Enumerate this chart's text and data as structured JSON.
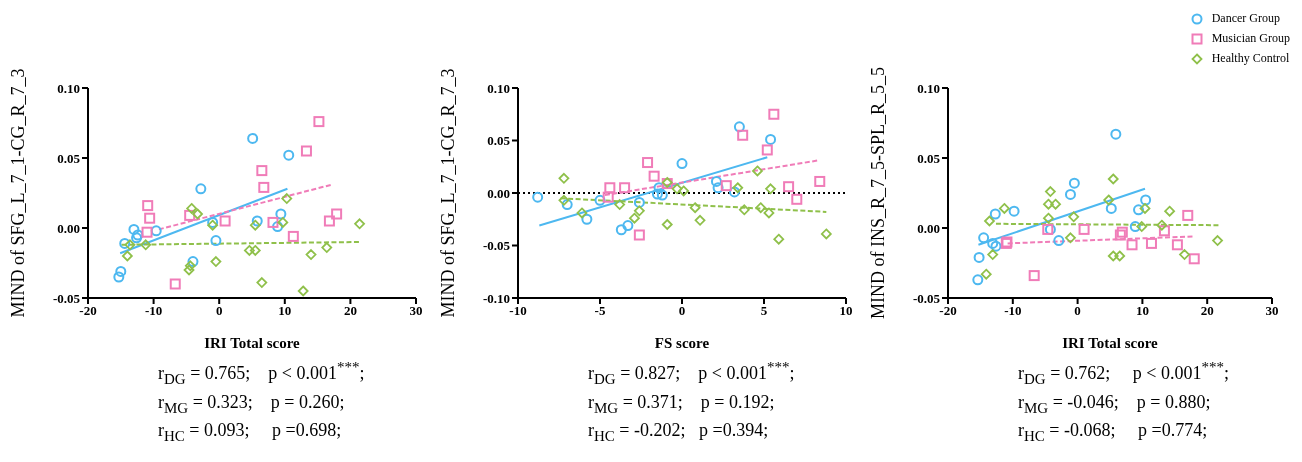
{
  "chart_data": [
    {
      "type": "scatter",
      "xlabel": "IRI Total score",
      "ylabel": "MIND of SFG_L_7_1-CG_R_7_3",
      "xlim": [
        -20,
        30
      ],
      "xticks": [
        -20,
        -10,
        0,
        10,
        20,
        30
      ],
      "ylim": [
        -0.05,
        0.1
      ],
      "yticks": [
        {
          "value": -0.05,
          "label": "-0.05"
        },
        {
          "value": 0,
          "label": "0.00"
        },
        {
          "value": 0.05,
          "label": "0.05"
        },
        {
          "value": 0.1,
          "label": "0.10"
        }
      ],
      "grid": false,
      "legend": false,
      "annotations": [
        "r$_{DG}$ = 0.765;    p < 0.001$^{***}$;",
        "r$_{MG}$ = 0.323;    p = 0.260;",
        "r$_{HC}$ = 0.093;     p =0.698;"
      ],
      "series": [
        {
          "color": "#4db8f0",
          "marker": "circle",
          "x": [
            -15.3,
            -15.0,
            -14.4,
            -13.0,
            -12.4,
            -12.6,
            -9.6,
            -2.8,
            -1.0,
            -0.5,
            -4.0,
            5.1,
            5.8,
            8.9,
            9.4,
            10.6
          ],
          "values": [
            -0.035,
            -0.031,
            -0.011,
            -0.001,
            -0.005,
            -0.007,
            -0.002,
            0.028,
            0.004,
            -0.009,
            -0.024,
            0.064,
            0.005,
            0.001,
            0.01,
            0.052
          ]
        },
        {
          "color": "#f07cb8",
          "marker": "square",
          "x": [
            -10.9,
            -10.6,
            -11.0,
            -6.7,
            -4.5,
            0.9,
            6.5,
            6.8,
            8.2,
            11.3,
            13.3,
            15.2,
            16.8,
            17.9
          ],
          "values": [
            0.016,
            0.007,
            -0.003,
            -0.04,
            0.009,
            0.005,
            0.041,
            0.029,
            0.004,
            -0.006,
            0.055,
            0.076,
            0.005,
            0.01
          ]
        },
        {
          "color": "#8fc04a",
          "marker": "diamond",
          "x": [
            -14.0,
            -13.6,
            -11.2,
            -4.2,
            -3.3,
            -4.6,
            -4.4,
            -1.0,
            -0.5,
            4.6,
            5.5,
            5.5,
            6.5,
            9.7,
            10.3,
            12.8,
            14.0,
            16.4,
            21.4
          ],
          "values": [
            -0.02,
            -0.012,
            -0.012,
            0.014,
            0.01,
            -0.03,
            -0.027,
            0.002,
            -0.024,
            -0.016,
            -0.016,
            0.002,
            -0.039,
            0.004,
            0.021,
            -0.045,
            -0.019,
            -0.014,
            0.003
          ]
        },
        {
          "type": "line",
          "color": "#4db8f0",
          "line_style": "solid",
          "x": [
            -15.1,
            10.4
          ],
          "values": [
            -0.018,
            0.028
          ]
        },
        {
          "type": "line",
          "color": "#f07cb8",
          "line_style": "dashed",
          "x": [
            -9.2,
            17.2
          ],
          "values": [
            -0.001,
            0.031
          ]
        },
        {
          "type": "line",
          "color": "#8fc04a",
          "line_style": "dashed",
          "x": [
            -14.9,
            21.4
          ],
          "values": [
            -0.012,
            -0.01
          ]
        }
      ]
    },
    {
      "type": "scatter",
      "xlabel": "FS score",
      "ylabel": "MIND of SFG_L_7_1-CG_R_7_3",
      "xlim": [
        -10,
        10
      ],
      "xticks": [
        -10,
        -5,
        0,
        5,
        10
      ],
      "ylim": [
        -0.1,
        0.1
      ],
      "yticks": [
        {
          "value": -0.1,
          "label": "-0.10"
        },
        {
          "value": -0.05,
          "label": "-0.05"
        },
        {
          "value": 0,
          "label": "0.00"
        },
        {
          "value": 0.05,
          "label": "0.05"
        },
        {
          "value": 0.1,
          "label": "0.10"
        }
      ],
      "grid": false,
      "legend": false,
      "ref_lines": [
        {
          "axis": "y",
          "value": 0,
          "color": "#000000",
          "line_style": "dotted"
        }
      ],
      "annotations": [
        "r$_{DG}$ = 0.827;    p < 0.001$^{***}$;",
        "r$_{MG}$ = 0.371;    p = 0.192;",
        "r$_{HC}$ = -0.202;   p =0.394;"
      ],
      "series": [
        {
          "color": "#4db8f0",
          "marker": "circle",
          "x": [
            -8.8,
            -7.0,
            -5.8,
            -5.0,
            -3.7,
            -3.3,
            -2.6,
            -1.5,
            -1.4,
            -1.2,
            0.0,
            2.1,
            2.2,
            3.2,
            3.5,
            5.4
          ],
          "values": [
            -0.004,
            -0.011,
            -0.025,
            -0.007,
            -0.035,
            -0.031,
            -0.009,
            -0.001,
            0.005,
            -0.002,
            0.028,
            0.011,
            0.005,
            0.001,
            0.063,
            0.051
          ]
        },
        {
          "color": "#f07cb8",
          "marker": "square",
          "x": [
            -4.5,
            -4.4,
            -3.5,
            -2.6,
            -2.1,
            -1.7,
            -0.9,
            2.7,
            3.7,
            5.2,
            5.6,
            6.5,
            7.0,
            8.4
          ],
          "values": [
            -0.004,
            0.005,
            0.005,
            -0.04,
            0.029,
            0.016,
            0.009,
            0.007,
            0.055,
            0.041,
            0.075,
            0.006,
            -0.006,
            0.011
          ]
        },
        {
          "color": "#8fc04a",
          "marker": "diamond",
          "x": [
            -7.2,
            -7.2,
            -6.1,
            -3.8,
            -2.9,
            -2.6,
            -0.9,
            -0.9,
            -0.3,
            0.1,
            0.8,
            1.1,
            3.4,
            3.8,
            4.6,
            4.8,
            5.3,
            5.4,
            5.9,
            8.8
          ],
          "values": [
            0.014,
            -0.007,
            -0.019,
            -0.011,
            -0.024,
            -0.017,
            0.01,
            -0.03,
            0.004,
            0.002,
            -0.014,
            -0.026,
            0.005,
            -0.016,
            0.021,
            -0.014,
            -0.019,
            0.004,
            -0.044,
            -0.039
          ]
        },
        {
          "type": "line",
          "color": "#4db8f0",
          "line_style": "solid",
          "x": [
            -8.7,
            5.2
          ],
          "values": [
            -0.031,
            0.034
          ]
        },
        {
          "type": "line",
          "color": "#f07cb8",
          "line_style": "dashed",
          "x": [
            -4.7,
            8.3
          ],
          "values": [
            -0.002,
            0.031
          ]
        },
        {
          "type": "line",
          "color": "#8fc04a",
          "line_style": "dashed",
          "x": [
            -7.4,
            8.8
          ],
          "values": [
            -0.005,
            -0.018
          ]
        }
      ]
    },
    {
      "type": "scatter",
      "xlabel": "IRI Total score",
      "ylabel": "MIND of INS_R_7_5-SPL_R_5_5",
      "xlim": [
        -20,
        30
      ],
      "xticks": [
        -20,
        -10,
        0,
        10,
        20,
        30
      ],
      "ylim": [
        -0.05,
        0.1
      ],
      "yticks": [
        {
          "value": -0.05,
          "label": "-0.05"
        },
        {
          "value": 0,
          "label": "0.00"
        },
        {
          "value": 0.05,
          "label": "0.05"
        },
        {
          "value": 0.1,
          "label": "0.10"
        }
      ],
      "grid": false,
      "legend": "top right",
      "annotations": [
        "r$_{DG}$ = 0.762;     p < 0.001$^{***}$;",
        "r$_{MG}$ = -0.046;    p = 0.880;",
        "r$_{HC}$ = -0.068;     p =0.774;"
      ],
      "series": [
        {
          "name": "Dancer Group",
          "color": "#4db8f0",
          "marker": "circle",
          "x": [
            -15.4,
            -15.2,
            -14.5,
            -13.1,
            -12.6,
            -12.7,
            -9.8,
            -4.2,
            -2.9,
            -1.1,
            -0.5,
            5.2,
            5.9,
            8.9,
            9.4,
            10.5
          ],
          "values": [
            -0.037,
            -0.021,
            -0.007,
            -0.011,
            -0.013,
            0.01,
            0.012,
            -0.001,
            -0.009,
            0.024,
            0.032,
            0.014,
            0.067,
            0.001,
            0.013,
            0.02
          ]
        },
        {
          "name": "Musician Group",
          "color": "#f07cb8",
          "marker": "square",
          "x": [
            -10.9,
            -11.0,
            -6.7,
            -4.6,
            1.0,
            6.6,
            6.9,
            8.4,
            11.4,
            13.4,
            15.4,
            17.0,
            18.0
          ],
          "values": [
            -0.01,
            -0.011,
            -0.034,
            -0.001,
            -0.001,
            -0.005,
            -0.003,
            -0.012,
            -0.011,
            -0.002,
            -0.012,
            0.009,
            -0.022
          ]
        },
        {
          "name": "Healthy Control",
          "color": "#8fc04a",
          "marker": "diamond",
          "x": [
            -14.1,
            -13.6,
            -13.1,
            -11.3,
            -4.2,
            -4.5,
            -3.4,
            -4.5,
            -1.1,
            -0.6,
            4.8,
            5.5,
            5.5,
            6.5,
            9.9,
            10.4,
            13.0,
            14.2,
            16.5,
            21.6
          ],
          "values": [
            -0.033,
            0.005,
            -0.019,
            0.014,
            0.026,
            0.017,
            0.017,
            0.007,
            -0.007,
            0.008,
            0.02,
            0.035,
            -0.02,
            -0.02,
            0.001,
            0.014,
            0.002,
            0.012,
            -0.019,
            -0.009
          ]
        },
        {
          "type": "line",
          "color": "#4db8f0",
          "line_style": "solid",
          "x": [
            -15.3,
            10.4
          ],
          "values": [
            -0.012,
            0.028
          ]
        },
        {
          "type": "line",
          "color": "#f07cb8",
          "line_style": "dashed",
          "x": [
            -10.8,
            17.9
          ],
          "values": [
            -0.011,
            -0.006
          ]
        },
        {
          "type": "line",
          "color": "#8fc04a",
          "line_style": "dashed",
          "x": [
            -12.6,
            21.8
          ],
          "values": [
            0.003,
            0.002
          ]
        }
      ]
    }
  ]
}
